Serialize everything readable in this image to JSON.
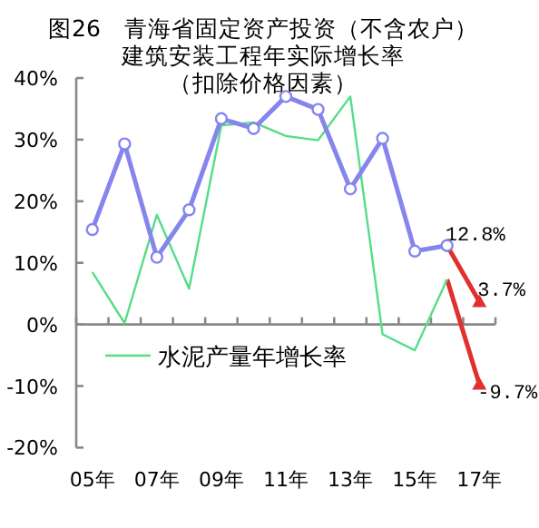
{
  "chart_data": {
    "type": "line",
    "title": "图26　青海省固定资产投资（不含农户）",
    "subtitle": "建筑安装工程年实际增长率",
    "annotations": [
      "（扣除价格因素）"
    ],
    "categories": [
      "05年",
      null,
      "07年",
      null,
      "09年",
      null,
      "11年",
      null,
      "13年",
      null,
      "15年",
      null,
      "17年"
    ],
    "series": [
      {
        "color": "#8585ee",
        "marker": "circle",
        "values": [
          15.4,
          29.3,
          10.9,
          18.6,
          33.4,
          31.8,
          37.0,
          34.9,
          22.0,
          30.2,
          11.9,
          12.8,
          null
        ]
      },
      {
        "name": "水泥产量年增长率",
        "color": "#55dd88",
        "marker": "none",
        "values": [
          8.5,
          0.2,
          17.8,
          5.8,
          32.3,
          32.8,
          30.6,
          29.9,
          37.0,
          -1.6,
          -4.2,
          7.3,
          null
        ]
      },
      {
        "color": "#e03030",
        "marker": "triangle",
        "values": [
          null,
          null,
          null,
          null,
          null,
          null,
          null,
          null,
          null,
          null,
          null,
          12.8,
          3.7
        ],
        "value_labels": [
          null,
          null,
          null,
          null,
          null,
          null,
          null,
          null,
          null,
          null,
          null,
          "12.8%",
          "3.7%"
        ]
      },
      {
        "color": "#e03030",
        "marker": "triangle",
        "values": [
          null,
          null,
          null,
          null,
          null,
          null,
          null,
          null,
          null,
          null,
          null,
          7.3,
          -9.7
        ],
        "value_labels": [
          null,
          null,
          null,
          null,
          null,
          null,
          null,
          null,
          null,
          null,
          null,
          null,
          "-9.7%"
        ]
      }
    ],
    "ylim": [
      -20,
      40
    ],
    "yticks": [
      {
        "value": -20,
        "label": "-20%"
      },
      {
        "value": -10,
        "label": "-10%"
      },
      {
        "value": 0,
        "label": "0%"
      },
      {
        "value": 10,
        "label": "10%"
      },
      {
        "value": 20,
        "label": "20%"
      },
      {
        "value": 30,
        "label": "30%"
      },
      {
        "value": 40,
        "label": "40%"
      }
    ],
    "legend": "bottom left"
  }
}
